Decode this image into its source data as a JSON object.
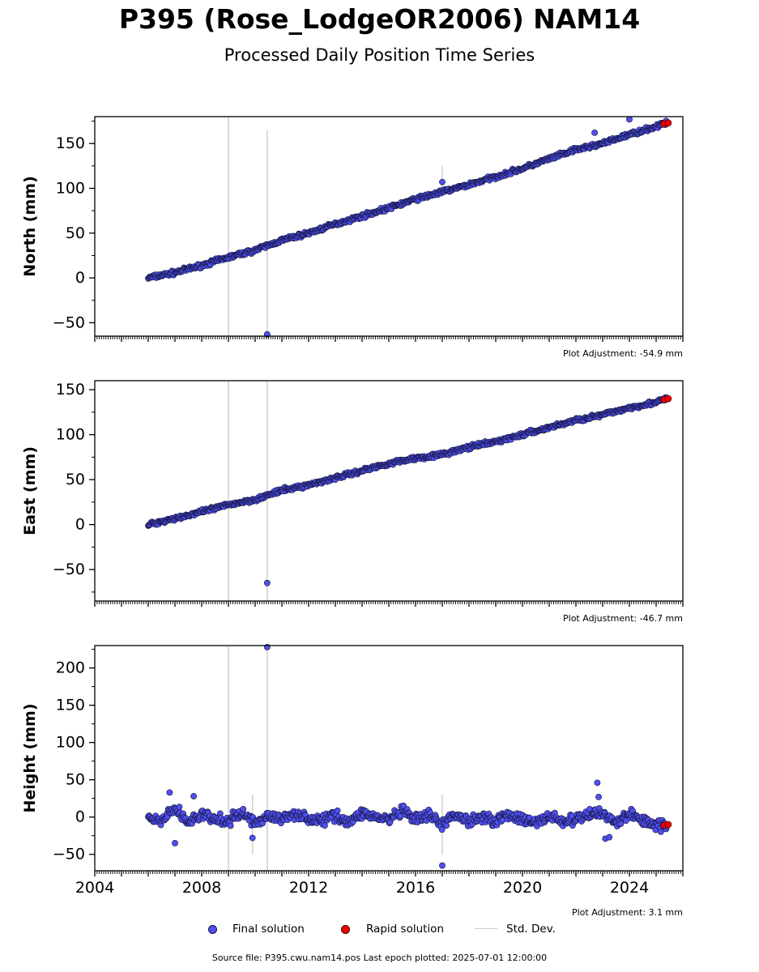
{
  "title": "P395 (Rose_LodgeOR2006) NAM14",
  "subtitle": "Processed Daily Position Time Series",
  "chart_data": [
    {
      "type": "scatter",
      "panel": "north",
      "ylabel": "North (mm)",
      "ylim": [
        -65,
        180
      ],
      "yticks": [
        -50,
        0,
        50,
        100,
        150
      ],
      "xlim": [
        2004,
        2026
      ],
      "adjustment": "Plot Adjustment: -54.9 mm",
      "series": [
        {
          "name": "Final solution",
          "kind": "trend",
          "x": [
            2006.0,
            2007.0,
            2008.0,
            2009.0,
            2010.0,
            2011.0,
            2012.0,
            2013.0,
            2014.0,
            2015.0,
            2016.0,
            2017.0,
            2018.0,
            2019.0,
            2020.0,
            2021.0,
            2022.0,
            2023.0,
            2024.0,
            2025.0,
            2025.4
          ],
          "y": [
            0,
            6,
            14,
            23,
            31,
            42,
            50,
            60,
            69,
            78,
            88,
            96,
            104,
            113,
            122,
            133,
            143,
            150,
            160,
            169,
            173
          ]
        },
        {
          "name": "Final solution outliers",
          "kind": "points",
          "x": [
            2010.45,
            2017.0,
            2022.7,
            2024.0
          ],
          "y": [
            -63,
            107,
            162,
            177
          ]
        },
        {
          "name": "Rapid solution",
          "kind": "points",
          "x": [
            2025.3,
            2025.45
          ],
          "y": [
            172,
            173
          ]
        },
        {
          "name": "Std. Dev.",
          "kind": "bars",
          "x": [
            2009.0,
            2010.45,
            2017.0
          ],
          "low": [
            -65,
            -65,
            95
          ],
          "high": [
            180,
            165,
            125
          ]
        }
      ]
    },
    {
      "type": "scatter",
      "panel": "east",
      "ylabel": "East (mm)",
      "ylim": [
        -85,
        160
      ],
      "yticks": [
        -50,
        0,
        50,
        100,
        150
      ],
      "xlim": [
        2004,
        2026
      ],
      "adjustment": "Plot Adjustment: -46.7 mm",
      "series": [
        {
          "name": "Final solution",
          "kind": "trend",
          "x": [
            2006.0,
            2007.0,
            2008.0,
            2009.0,
            2010.0,
            2011.0,
            2012.0,
            2013.0,
            2014.0,
            2015.0,
            2016.0,
            2017.0,
            2018.0,
            2019.0,
            2020.0,
            2021.0,
            2022.0,
            2023.0,
            2024.0,
            2025.0,
            2025.4
          ],
          "y": [
            0,
            7,
            14,
            22,
            28,
            38,
            44,
            52,
            60,
            68,
            74,
            78,
            86,
            92,
            100,
            108,
            116,
            122,
            130,
            136,
            140
          ]
        },
        {
          "name": "Final solution outliers",
          "kind": "points",
          "x": [
            2010.45
          ],
          "y": [
            -65
          ]
        },
        {
          "name": "Rapid solution",
          "kind": "points",
          "x": [
            2025.3,
            2025.45
          ],
          "y": [
            139,
            140
          ]
        },
        {
          "name": "Std. Dev.",
          "kind": "bars",
          "x": [
            2009.0,
            2010.45
          ],
          "low": [
            -85,
            -85
          ],
          "high": [
            160,
            160
          ]
        }
      ]
    },
    {
      "type": "scatter",
      "panel": "height",
      "ylabel": "Height (mm)",
      "ylim": [
        -72,
        230
      ],
      "yticks": [
        -50,
        0,
        50,
        100,
        150,
        200
      ],
      "xlim": [
        2004,
        2026
      ],
      "xticks": [
        2004,
        2008,
        2012,
        2016,
        2020,
        2024
      ],
      "adjustment": "Plot Adjustment: 3.1 mm",
      "series": [
        {
          "name": "Final solution",
          "kind": "trend",
          "x": [
            2006.0,
            2006.5,
            2007.0,
            2007.5,
            2008.0,
            2008.5,
            2009.0,
            2009.5,
            2010.0,
            2010.5,
            2011.0,
            2011.5,
            2012.0,
            2012.5,
            2013.0,
            2013.5,
            2014.0,
            2014.5,
            2015.0,
            2015.5,
            2016.0,
            2016.5,
            2017.0,
            2017.5,
            2018.0,
            2018.5,
            2019.0,
            2019.5,
            2020.0,
            2020.5,
            2021.0,
            2021.5,
            2022.0,
            2022.5,
            2023.0,
            2023.5,
            2024.0,
            2024.5,
            2025.0,
            2025.4
          ],
          "y": [
            -2,
            -6,
            12,
            -8,
            4,
            -4,
            -6,
            6,
            -8,
            2,
            -4,
            6,
            -2,
            -6,
            4,
            -8,
            6,
            0,
            -4,
            8,
            -4,
            2,
            -10,
            4,
            -6,
            2,
            -6,
            4,
            -4,
            -8,
            2,
            -6,
            -4,
            4,
            6,
            -8,
            4,
            -4,
            -10,
            -12
          ]
        },
        {
          "name": "Final solution outliers",
          "kind": "points",
          "x": [
            2006.8,
            2007.0,
            2007.7,
            2009.9,
            2010.45,
            2017.0,
            2022.8,
            2022.85,
            2023.1,
            2023.25
          ],
          "y": [
            33,
            -35,
            28,
            -28,
            228,
            -65,
            46,
            27,
            -29,
            -27
          ]
        },
        {
          "name": "Rapid solution",
          "kind": "points",
          "x": [
            2025.3,
            2025.45
          ],
          "y": [
            -11,
            -10
          ]
        },
        {
          "name": "Std. Dev.",
          "kind": "bars",
          "x": [
            2009.0,
            2009.9,
            2010.45,
            2017.0
          ],
          "low": [
            -72,
            -50,
            -72,
            -50
          ],
          "high": [
            230,
            30,
            230,
            30
          ]
        }
      ]
    }
  ],
  "legend": {
    "final": "Final solution",
    "rapid": "Rapid solution",
    "std": "Std. Dev."
  },
  "colors": {
    "final_fill": "#5050f0",
    "final_edge": "#111133",
    "rapid": "#ee0000",
    "std": "#cfcfcf"
  },
  "footer": "Source file: P395.cwu.nam14.pos  Last epoch plotted: 2025-07-01 12:00:00"
}
